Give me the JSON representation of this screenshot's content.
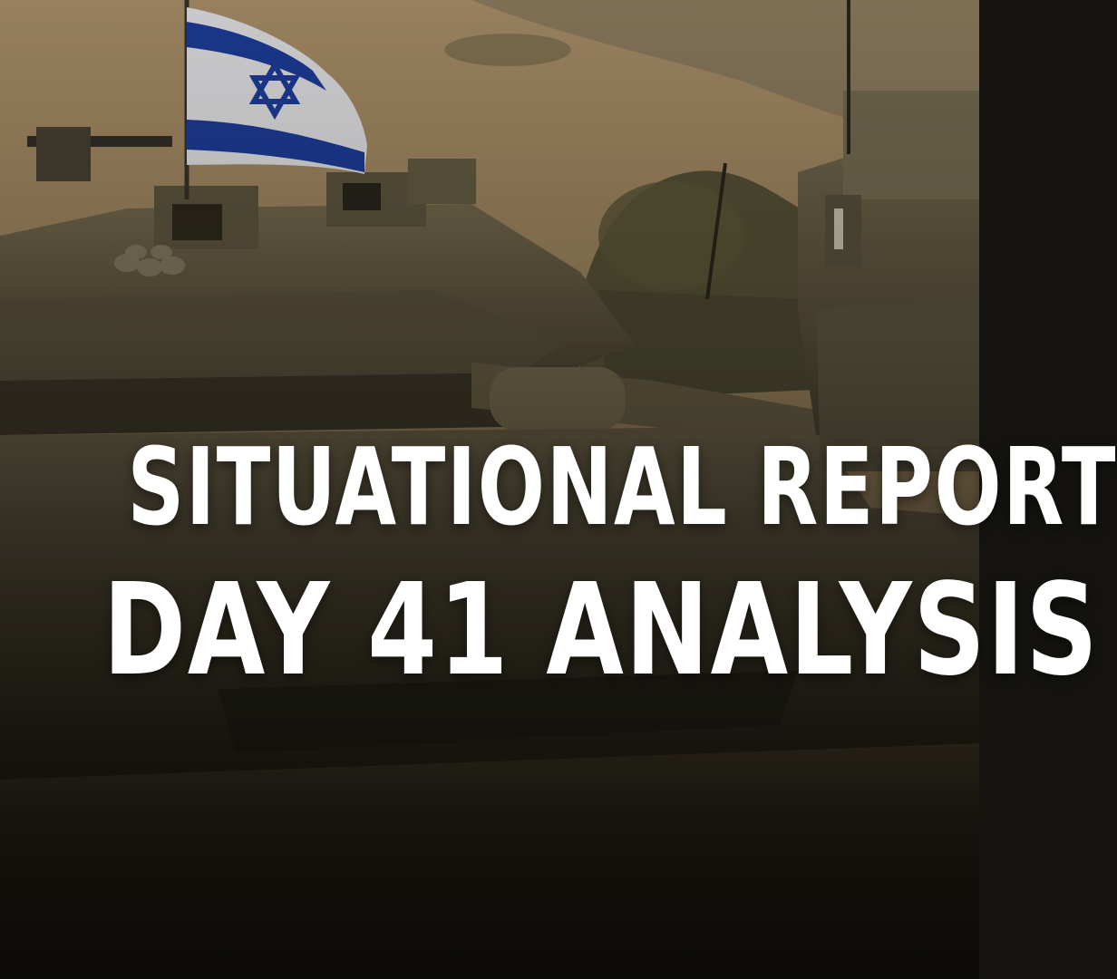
{
  "post": {
    "headline_line1": "SITUATIONAL REPORT",
    "headline_line2": "DAY 41 ANALYSIS"
  },
  "photo": {
    "flag": {
      "field_color": "#f4f4f8",
      "stripe_color": "#1e3fa6",
      "star_color": "#1e3fa6"
    },
    "tank_color": "#6b6146",
    "hill_color": "#a48a62",
    "vegetation_color": "#4e4a32",
    "overlay_color": "#0c0b08"
  }
}
